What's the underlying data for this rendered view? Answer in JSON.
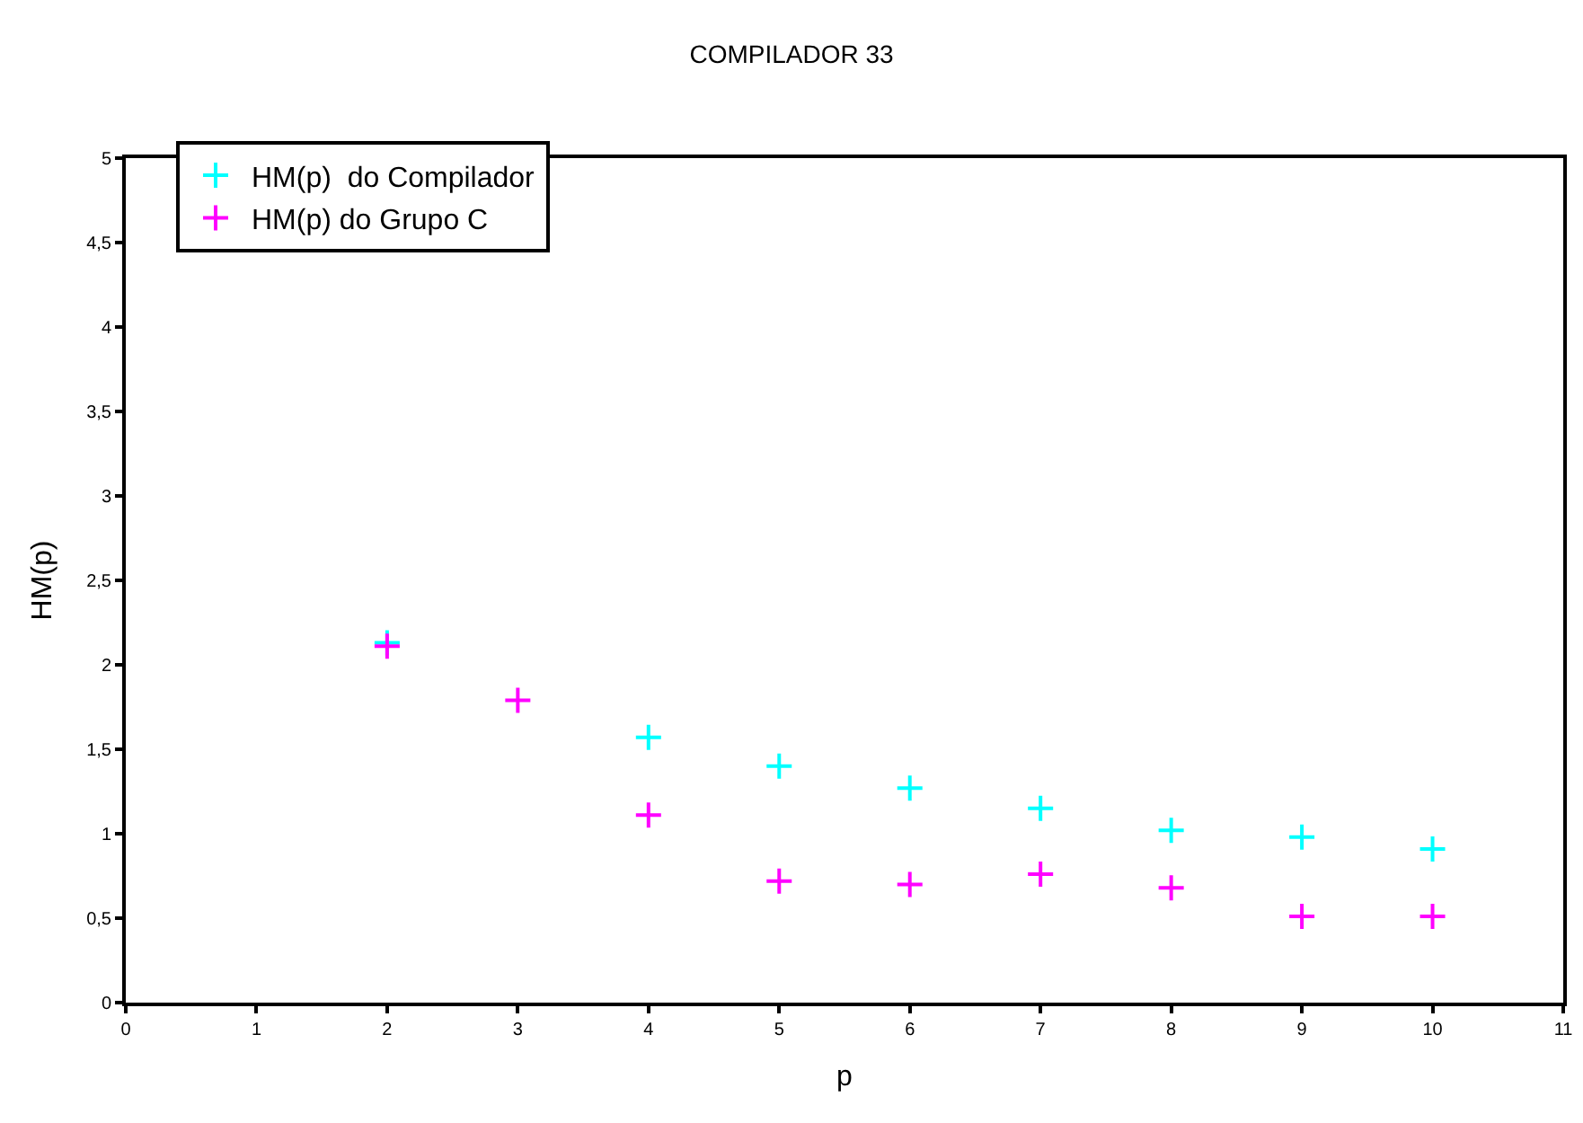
{
  "chart_data": {
    "type": "scatter",
    "title": "COMPILADOR 33",
    "xlabel": "p",
    "ylabel": "HM(p)",
    "x": [
      2,
      3,
      4,
      5,
      6,
      7,
      8,
      9,
      10
    ],
    "series": [
      {
        "name": "HM(p)  do Compilador",
        "color": "#00ffff",
        "x": [
          2,
          4,
          5,
          6,
          7,
          8,
          9,
          10
        ],
        "values": [
          2.13,
          1.57,
          1.4,
          1.27,
          1.15,
          1.02,
          0.98,
          0.91
        ]
      },
      {
        "name": "HM(p) do Grupo C",
        "color": "#ff00ff",
        "values": [
          2.11,
          1.79,
          1.11,
          0.72,
          0.7,
          0.76,
          0.68,
          0.51,
          0.51
        ]
      }
    ],
    "xlim": [
      0,
      11
    ],
    "xticks": [
      0,
      1,
      2,
      3,
      4,
      5,
      6,
      7,
      8,
      9,
      10,
      11
    ],
    "ylim": [
      0,
      5
    ],
    "yticks": [
      0,
      {
        "value": 0.5,
        "label": "0,5"
      },
      1,
      {
        "value": 1.5,
        "label": "1,5"
      },
      2,
      {
        "value": 2.5,
        "label": "2,5"
      },
      3,
      {
        "value": 3.5,
        "label": "3,5"
      },
      4,
      {
        "value": 4.5,
        "label": "4,5"
      },
      5
    ],
    "legend": "top left",
    "marker": "cross"
  }
}
